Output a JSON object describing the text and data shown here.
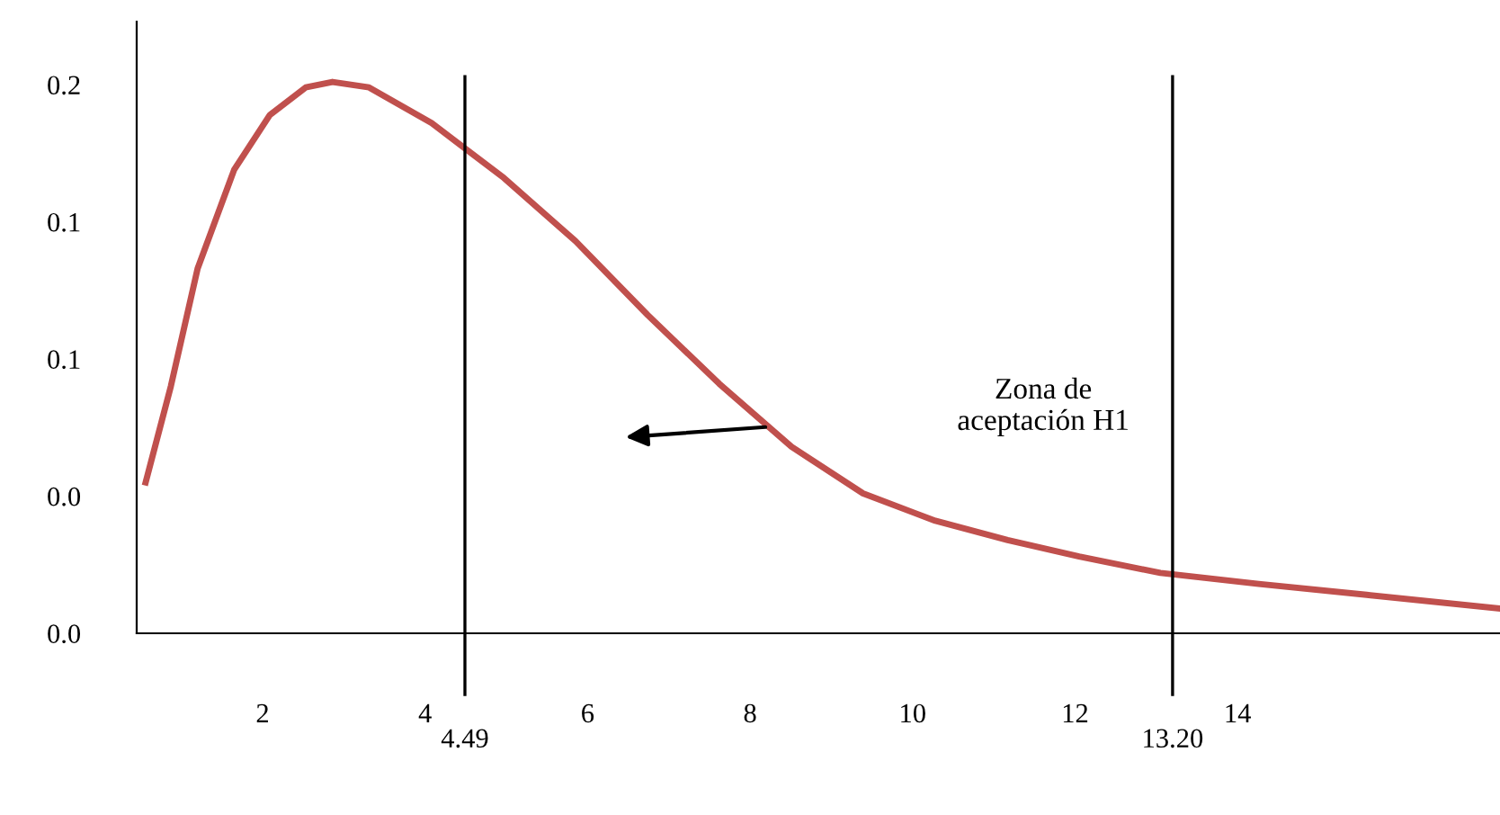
{
  "chart_data": {
    "type": "line",
    "x": [
      0.56,
      0.87,
      1.2,
      1.65,
      2.09,
      2.53,
      2.86,
      3.31,
      4.08,
      4.97,
      5.85,
      6.74,
      7.62,
      8.51,
      9.39,
      10.28,
      11.17,
      12.05,
      13.05,
      14.26,
      15.59,
      17.23
    ],
    "series": [
      {
        "color": "#c0504d",
        "values": [
          0.055,
          0.09,
          0.133,
          0.169,
          0.189,
          0.199,
          0.201,
          0.199,
          0.186,
          0.166,
          0.143,
          0.116,
          0.091,
          0.068,
          0.051,
          0.041,
          0.034,
          0.028,
          0.022,
          0.018,
          0.014,
          0.009
        ]
      }
    ],
    "xlim": [
      0.45,
      17.23
    ],
    "xticks": [
      2,
      4,
      6,
      8,
      10,
      12,
      14
    ],
    "ylim": [
      0,
      0.223
    ],
    "yticks": [
      {
        "value": 0,
        "label": "0.0"
      },
      {
        "value": 0.05,
        "label": "0.0"
      },
      {
        "value": 0.1,
        "label": "0.1"
      },
      {
        "value": 0.15,
        "label": "0.1"
      },
      {
        "value": 0.2,
        "label": "0.2"
      }
    ],
    "ref_lines": [
      {
        "axis": "x",
        "value": 4.49,
        "label": "4.49",
        "color": "#000000"
      },
      {
        "axis": "x",
        "value": 13.2,
        "label": "13.20",
        "color": "#000000"
      }
    ],
    "annotations": [
      "Zona de\naceptación H1"
    ],
    "grid": false,
    "legend": false,
    "marker": "none",
    "line_style": "solid"
  }
}
